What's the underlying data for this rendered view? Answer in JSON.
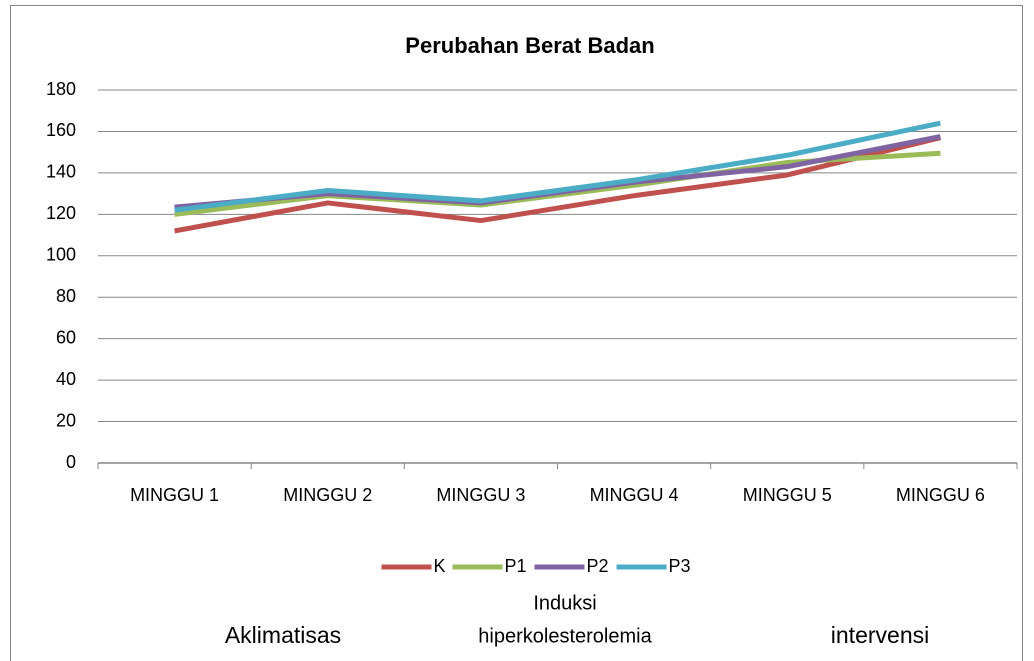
{
  "chart_data": {
    "type": "line",
    "title": "Perubahan Berat Badan",
    "categories": [
      "MINGGU 1",
      "MINGGU 2",
      "MINGGU 3",
      "MINGGU 4",
      "MINGGU 5",
      "MINGGU 6"
    ],
    "series": [
      {
        "name": "K",
        "color": "#c0504d",
        "values": [
          112,
          125.5,
          117,
          129,
          139,
          157
        ]
      },
      {
        "name": "P1",
        "color": "#9bbb59",
        "values": [
          120,
          129,
          124.5,
          134,
          145,
          149.5
        ]
      },
      {
        "name": "P2",
        "color": "#8064a2",
        "values": [
          123.5,
          130,
          125.5,
          135.5,
          143,
          157.5
        ]
      },
      {
        "name": "P3",
        "color": "#4bacc6",
        "values": [
          122,
          131.5,
          126.5,
          136.5,
          148.5,
          164
        ]
      }
    ],
    "ylim": [
      0,
      180
    ],
    "yticks": [
      0,
      20,
      40,
      60,
      80,
      100,
      120,
      140,
      160,
      180
    ],
    "grid": true,
    "legend": "bottom",
    "annotations": [
      [
        "Aklimatisas"
      ],
      [
        "Induksi",
        "hiperkolesterolemia"
      ],
      [
        "intervensi"
      ]
    ]
  }
}
